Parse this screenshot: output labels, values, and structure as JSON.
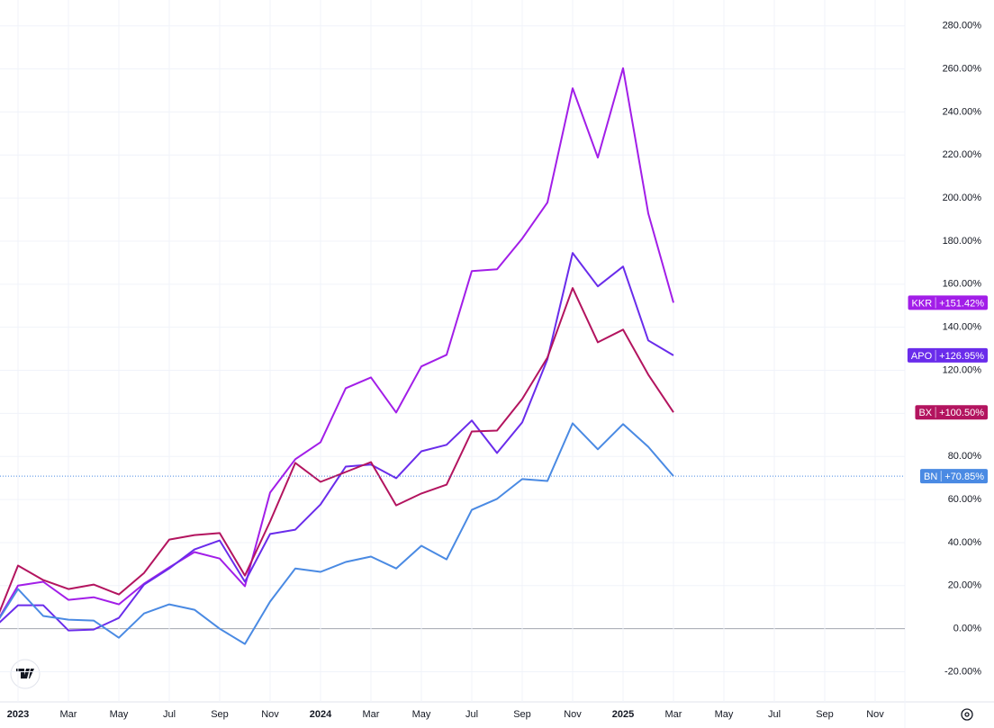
{
  "chart_data": {
    "type": "line",
    "x": [
      "2022-12",
      "2023-01",
      "2023-02",
      "2023-03",
      "2023-04",
      "2023-05",
      "2023-06",
      "2023-07",
      "2023-08",
      "2023-09",
      "2023-10",
      "2023-11",
      "2023-12",
      "2024-01",
      "2024-02",
      "2024-03",
      "2024-04",
      "2024-05",
      "2024-06",
      "2024-07",
      "2024-08",
      "2024-09",
      "2024-10",
      "2024-11",
      "2024-12",
      "2025-01",
      "2025-02",
      "2025-03"
    ],
    "series": [
      {
        "name": "KKR",
        "color": "#a21ee8",
        "last_value_label": "+151.42%",
        "values": [
          0,
          20,
          21.8,
          13.4,
          14.6,
          11.3,
          20.9,
          28.5,
          35.6,
          32.6,
          19.7,
          63.2,
          78.7,
          86.6,
          111.7,
          116.7,
          100.4,
          121.8,
          127.2,
          166.1,
          166.9,
          181.2,
          197.9,
          251,
          218.8,
          260.3,
          192.9,
          151.42
        ]
      },
      {
        "name": "APO",
        "color": "#6a2ceb",
        "last_value_label": "+126.95%",
        "values": [
          0,
          10.9,
          10.9,
          -0.8,
          -0.4,
          5,
          20.5,
          28,
          36.8,
          41,
          21.8,
          44,
          46,
          57.7,
          75.3,
          76.2,
          69.9,
          82.4,
          85.4,
          96.7,
          81.6,
          95.8,
          125.1,
          174.5,
          159,
          168.2,
          133.9,
          126.95
        ]
      },
      {
        "name": "BX",
        "color": "#b3145f",
        "last_value_label": "+100.50%",
        "values": [
          0,
          29.3,
          22.6,
          18.4,
          20.5,
          15.9,
          25.9,
          41.4,
          43.5,
          44.4,
          24.7,
          49.8,
          77,
          68.2,
          72.8,
          77.4,
          57.3,
          62.8,
          66.9,
          91.6,
          92,
          106.7,
          125.9,
          158.2,
          133,
          138.9,
          118,
          100.5
        ]
      },
      {
        "name": "BN",
        "color": "#4a8ae3",
        "last_value_label": "+70.85%",
        "values": [
          0,
          18.4,
          5.9,
          4.2,
          3.8,
          -4.2,
          7.1,
          11.3,
          8.8,
          0,
          -7.1,
          12.6,
          28,
          26.4,
          31,
          33.5,
          28,
          38.5,
          32.2,
          55.2,
          60.3,
          69.5,
          68.6,
          95.4,
          83.3,
          95,
          84.5,
          70.85
        ]
      }
    ],
    "xlim": [
      "2022-12",
      "2025-12"
    ],
    "xticks": [
      {
        "value": "2023-01",
        "label": "2023"
      },
      {
        "value": "2023-03",
        "label": "Mar"
      },
      {
        "value": "2023-05",
        "label": "May"
      },
      {
        "value": "2023-07",
        "label": "Jul"
      },
      {
        "value": "2023-09",
        "label": "Sep"
      },
      {
        "value": "2023-11",
        "label": "Nov"
      },
      {
        "value": "2024-01",
        "label": "2024"
      },
      {
        "value": "2024-03",
        "label": "Mar"
      },
      {
        "value": "2024-05",
        "label": "May"
      },
      {
        "value": "2024-07",
        "label": "Jul"
      },
      {
        "value": "2024-09",
        "label": "Sep"
      },
      {
        "value": "2024-11",
        "label": "Nov"
      },
      {
        "value": "2025-01",
        "label": "2025"
      },
      {
        "value": "2025-03",
        "label": "Mar"
      },
      {
        "value": "2025-05",
        "label": "May"
      },
      {
        "value": "2025-07",
        "label": "Jul"
      },
      {
        "value": "2025-09",
        "label": "Sep"
      },
      {
        "value": "2025-11",
        "label": "Nov"
      }
    ],
    "ylim": [
      -34,
      292
    ],
    "yticks": [
      {
        "value": -20,
        "label": "-20.00%"
      },
      {
        "value": 0,
        "label": "0.00%"
      },
      {
        "value": 20,
        "label": "20.00%"
      },
      {
        "value": 40,
        "label": "40.00%"
      },
      {
        "value": 60,
        "label": "60.00%"
      },
      {
        "value": 80,
        "label": "80.00%"
      },
      {
        "value": 100,
        "label": "100.00%"
      },
      {
        "value": 120,
        "label": "120.00%"
      },
      {
        "value": 140,
        "label": "140.00%"
      },
      {
        "value": 160,
        "label": "160.00%"
      },
      {
        "value": 180,
        "label": "180.00%"
      },
      {
        "value": 200,
        "label": "200.00%"
      },
      {
        "value": 220,
        "label": "220.00%"
      },
      {
        "value": 240,
        "label": "240.00%"
      },
      {
        "value": 260,
        "label": "260.00%"
      },
      {
        "value": 280,
        "label": "280.00%"
      }
    ],
    "grid": true
  }
}
